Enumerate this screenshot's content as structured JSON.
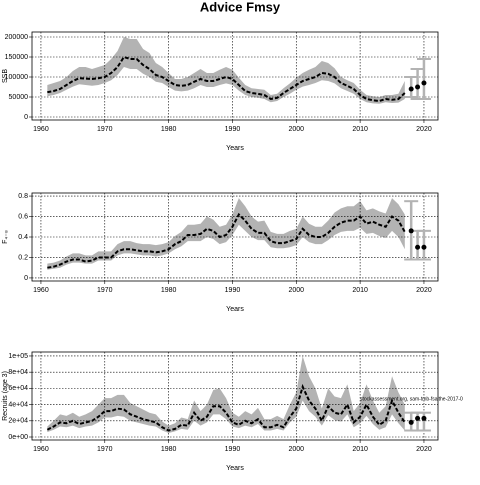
{
  "chart_data": [
    {
      "type": "band-line",
      "title": "Advice Fmsy",
      "x_label": "Years",
      "y_label": "SSB",
      "xlim": [
        1958.6,
        2022.2
      ],
      "xticks": [
        1960,
        1970,
        1980,
        1990,
        2000,
        2010,
        2020
      ],
      "ylim": [
        -7500,
        212500
      ],
      "yticks": [
        0,
        50000,
        100000,
        150000,
        200000
      ],
      "grid": true,
      "line_color": "#000000",
      "band_color": "#b3b3b3",
      "x": [
        1961,
        1962,
        1963,
        1964,
        1965,
        1966,
        1967,
        1968,
        1969,
        1970,
        1971,
        1972,
        1973,
        1974,
        1975,
        1976,
        1977,
        1978,
        1979,
        1980,
        1981,
        1982,
        1983,
        1984,
        1985,
        1986,
        1987,
        1988,
        1989,
        1990,
        1991,
        1992,
        1993,
        1994,
        1995,
        1996,
        1997,
        1998,
        1999,
        2000,
        2001,
        2002,
        2003,
        2004,
        2005,
        2006,
        2007,
        2008,
        2009,
        2010,
        2011,
        2012,
        2013,
        2014,
        2015,
        2016,
        2017
      ],
      "values": [
        62000,
        65000,
        70000,
        80000,
        90000,
        97000,
        96000,
        95000,
        97000,
        100000,
        110000,
        125000,
        150000,
        145000,
        145000,
        130000,
        120000,
        105000,
        100000,
        90000,
        80000,
        78000,
        80000,
        88000,
        95000,
        90000,
        90000,
        95000,
        100000,
        95000,
        80000,
        65000,
        60000,
        58000,
        55000,
        45000,
        48000,
        60000,
        70000,
        80000,
        90000,
        95000,
        100000,
        110000,
        108000,
        100000,
        85000,
        78000,
        70000,
        55000,
        45000,
        42000,
        40000,
        45000,
        43000,
        45000,
        60000
      ],
      "lower": [
        52000,
        55000,
        60000,
        68000,
        76000,
        82000,
        80000,
        78000,
        80000,
        85000,
        92000,
        105000,
        125000,
        120000,
        120000,
        108000,
        100000,
        88000,
        85000,
        75000,
        66000,
        64000,
        66000,
        72000,
        80000,
        75000,
        75000,
        80000,
        84000,
        80000,
        66000,
        55000,
        50000,
        48000,
        45000,
        37000,
        40000,
        50000,
        58000,
        68000,
        76000,
        80000,
        85000,
        92000,
        90000,
        84000,
        72000,
        65000,
        58000,
        45000,
        37000,
        34000,
        33000,
        37000,
        35000,
        36000,
        45000
      ],
      "upper": [
        80000,
        85000,
        90000,
        100000,
        115000,
        125000,
        125000,
        120000,
        125000,
        130000,
        145000,
        165000,
        200000,
        195000,
        195000,
        170000,
        160000,
        135000,
        125000,
        110000,
        95000,
        95000,
        100000,
        110000,
        120000,
        110000,
        110000,
        118000,
        125000,
        118000,
        98000,
        80000,
        72000,
        70000,
        68000,
        55000,
        58000,
        72000,
        84000,
        98000,
        110000,
        118000,
        125000,
        140000,
        135000,
        122000,
        100000,
        92000,
        85000,
        68000,
        55000,
        52000,
        50000,
        55000,
        55000,
        58000,
        90000
      ],
      "points": {
        "x": [
          2018,
          2019,
          2020
        ],
        "values": [
          70000,
          75000,
          85000
        ],
        "lower": [
          50000,
          45000,
          45000
        ],
        "upper": [
          100000,
          120000,
          145000
        ]
      }
    },
    {
      "type": "band-line",
      "x_label": "Years",
      "y_label": "F₄₋₈",
      "xlim": [
        1958.6,
        2022.2
      ],
      "xticks": [
        1960,
        1970,
        1980,
        1990,
        2000,
        2010,
        2020
      ],
      "ylim": [
        -0.03,
        0.83
      ],
      "yticks": [
        0,
        0.2,
        0.4,
        0.6,
        0.8
      ],
      "grid": true,
      "line_color": "#000000",
      "band_color": "#b3b3b3",
      "x": [
        1961,
        1962,
        1963,
        1964,
        1965,
        1966,
        1967,
        1968,
        1969,
        1970,
        1971,
        1972,
        1973,
        1974,
        1975,
        1976,
        1977,
        1978,
        1979,
        1980,
        1981,
        1982,
        1983,
        1984,
        1985,
        1986,
        1987,
        1988,
        1989,
        1990,
        1991,
        1992,
        1993,
        1994,
        1995,
        1996,
        1997,
        1998,
        1999,
        2000,
        2001,
        2002,
        2003,
        2004,
        2005,
        2006,
        2007,
        2008,
        2009,
        2010,
        2011,
        2012,
        2013,
        2014,
        2015,
        2016,
        2017
      ],
      "values": [
        0.1,
        0.11,
        0.13,
        0.16,
        0.18,
        0.18,
        0.16,
        0.17,
        0.2,
        0.2,
        0.2,
        0.26,
        0.28,
        0.28,
        0.27,
        0.26,
        0.26,
        0.25,
        0.26,
        0.28,
        0.33,
        0.36,
        0.42,
        0.42,
        0.43,
        0.48,
        0.46,
        0.4,
        0.42,
        0.5,
        0.62,
        0.56,
        0.48,
        0.44,
        0.44,
        0.36,
        0.34,
        0.34,
        0.36,
        0.38,
        0.48,
        0.42,
        0.4,
        0.4,
        0.44,
        0.5,
        0.54,
        0.56,
        0.56,
        0.6,
        0.53,
        0.55,
        0.52,
        0.5,
        0.6,
        0.56,
        0.45
      ],
      "lower": [
        0.08,
        0.09,
        0.1,
        0.13,
        0.15,
        0.15,
        0.14,
        0.14,
        0.17,
        0.17,
        0.17,
        0.22,
        0.24,
        0.24,
        0.23,
        0.22,
        0.22,
        0.21,
        0.22,
        0.24,
        0.28,
        0.31,
        0.36,
        0.36,
        0.36,
        0.4,
        0.38,
        0.33,
        0.35,
        0.42,
        0.52,
        0.46,
        0.4,
        0.37,
        0.37,
        0.3,
        0.29,
        0.29,
        0.3,
        0.32,
        0.4,
        0.35,
        0.33,
        0.33,
        0.37,
        0.42,
        0.45,
        0.46,
        0.46,
        0.49,
        0.43,
        0.44,
        0.41,
        0.39,
        0.46,
        0.4,
        0.28
      ],
      "upper": [
        0.14,
        0.15,
        0.17,
        0.21,
        0.24,
        0.24,
        0.22,
        0.22,
        0.26,
        0.26,
        0.26,
        0.33,
        0.36,
        0.36,
        0.34,
        0.33,
        0.33,
        0.32,
        0.33,
        0.35,
        0.41,
        0.45,
        0.52,
        0.52,
        0.53,
        0.6,
        0.57,
        0.5,
        0.52,
        0.62,
        0.78,
        0.7,
        0.6,
        0.55,
        0.56,
        0.45,
        0.43,
        0.43,
        0.46,
        0.48,
        0.6,
        0.53,
        0.5,
        0.5,
        0.56,
        0.64,
        0.68,
        0.7,
        0.7,
        0.75,
        0.66,
        0.68,
        0.65,
        0.63,
        0.78,
        0.72,
        0.62
      ],
      "points": {
        "x": [
          2018,
          2019,
          2020
        ],
        "values": [
          0.46,
          0.3,
          0.3
        ],
        "lower": [
          0.18,
          0.18,
          0.18
        ],
        "upper": [
          0.75,
          0.46,
          0.46
        ]
      }
    },
    {
      "type": "band-line",
      "x_label": "Years",
      "y_label": "Recruits (age 3)",
      "annotation": "stockassessment.org, sam-tmb-fsaithe-2017-0",
      "xlim": [
        1958.6,
        2022.2
      ],
      "xticks": [
        1960,
        1970,
        1980,
        1990,
        2000,
        2010,
        2020
      ],
      "ylim": [
        -3700,
        104900
      ],
      "yticks": [
        {
          "value": 0,
          "label": "0e+00"
        },
        {
          "value": 20000,
          "label": "2e+04"
        },
        {
          "value": 40000,
          "label": "4e+04"
        },
        {
          "value": 60000,
          "label": "6e+04"
        },
        {
          "value": 80000,
          "label": "8e+04"
        },
        {
          "value": 100000,
          "label": "1e+05"
        }
      ],
      "grid": true,
      "line_color": "#000000",
      "band_color": "#b3b3b3",
      "x": [
        1961,
        1962,
        1963,
        1964,
        1965,
        1966,
        1967,
        1968,
        1969,
        1970,
        1971,
        1972,
        1973,
        1974,
        1975,
        1976,
        1977,
        1978,
        1979,
        1980,
        1981,
        1982,
        1983,
        1984,
        1985,
        1986,
        1987,
        1988,
        1989,
        1990,
        1991,
        1992,
        1993,
        1994,
        1995,
        1996,
        1997,
        1998,
        1999,
        2000,
        2001,
        2002,
        2003,
        2004,
        2005,
        2006,
        2007,
        2008,
        2009,
        2010,
        2011,
        2012,
        2013,
        2014,
        2015,
        2016,
        2017
      ],
      "values": [
        9000,
        13000,
        18000,
        17000,
        20000,
        16000,
        18000,
        20000,
        25000,
        32000,
        32000,
        35000,
        34000,
        28000,
        25000,
        22000,
        20000,
        18000,
        12000,
        8000,
        10000,
        15000,
        14000,
        30000,
        20000,
        25000,
        38000,
        38000,
        30000,
        18000,
        15000,
        20000,
        17000,
        22000,
        12000,
        12000,
        15000,
        12000,
        25000,
        35000,
        62000,
        45000,
        35000,
        20000,
        38000,
        30000,
        28000,
        40000,
        18000,
        25000,
        40000,
        25000,
        15000,
        20000,
        45000,
        30000,
        18000
      ],
      "lower": [
        6000,
        9000,
        13000,
        12000,
        14000,
        11000,
        13000,
        14000,
        18000,
        24000,
        24000,
        26000,
        25000,
        20000,
        18000,
        16000,
        14000,
        13000,
        8000,
        5000,
        7000,
        10000,
        9000,
        20000,
        14000,
        18000,
        28000,
        28000,
        22000,
        13000,
        11000,
        14000,
        12000,
        16000,
        8000,
        8000,
        10000,
        8000,
        18000,
        25000,
        45000,
        32000,
        25000,
        14000,
        27000,
        21000,
        19000,
        28000,
        12000,
        17000,
        26000,
        16000,
        9000,
        12000,
        28000,
        17000,
        8000
      ],
      "upper": [
        13000,
        20000,
        28000,
        26000,
        30000,
        25000,
        28000,
        32000,
        40000,
        48000,
        48000,
        52000,
        52000,
        42000,
        38000,
        34000,
        30000,
        28000,
        19000,
        14000,
        17000,
        24000,
        22000,
        45000,
        32000,
        40000,
        58000,
        60000,
        48000,
        30000,
        25000,
        32000,
        28000,
        36000,
        22000,
        22000,
        26000,
        22000,
        40000,
        55000,
        100000,
        75000,
        60000,
        35000,
        60000,
        50000,
        48000,
        65000,
        32000,
        42000,
        65000,
        45000,
        30000,
        38000,
        75000,
        55000,
        40000
      ],
      "points": {
        "x": [
          2018,
          2019,
          2020
        ],
        "values": [
          18000,
          23000,
          23000
        ],
        "lower": [
          8000,
          8000,
          8000
        ],
        "upper": [
          30000,
          30000,
          30000
        ]
      }
    }
  ]
}
